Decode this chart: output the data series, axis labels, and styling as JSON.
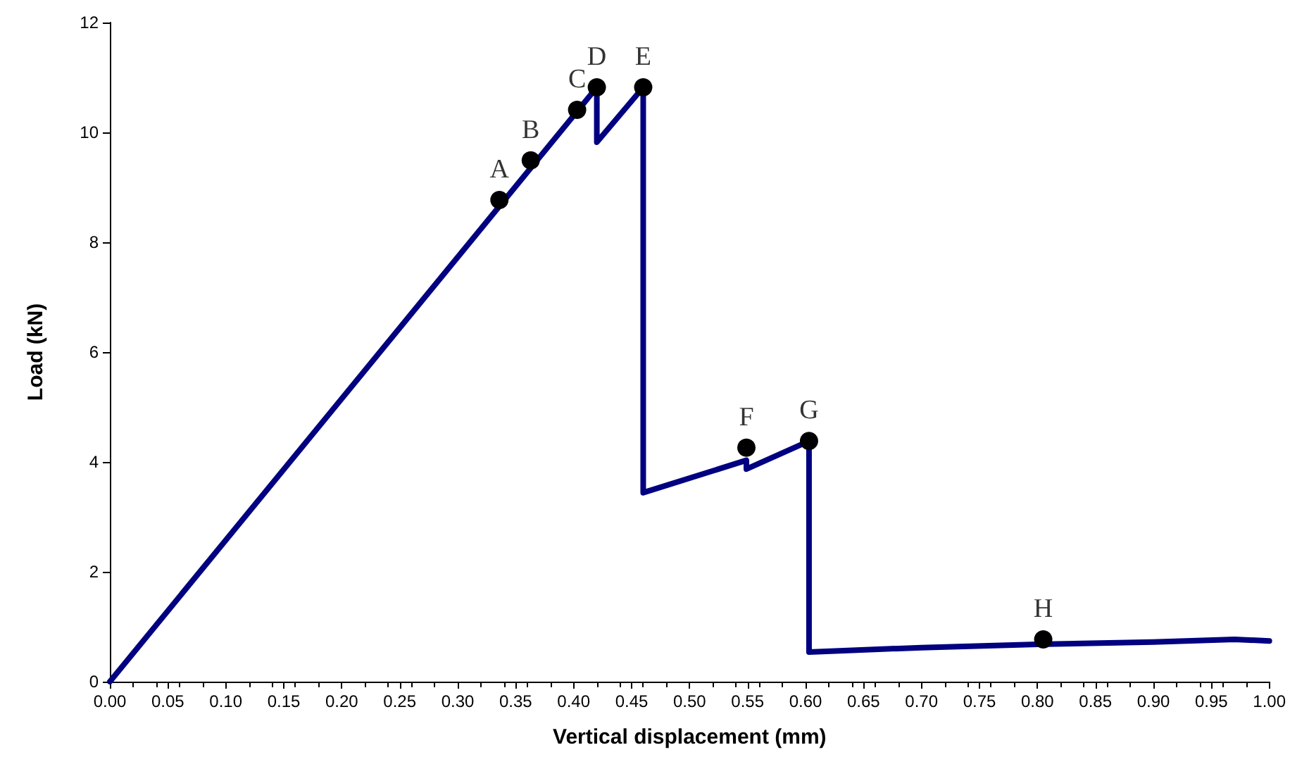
{
  "chart_data": {
    "type": "line",
    "xlabel": "Vertical displacement (mm)",
    "ylabel": "Load (kN)",
    "xlim": [
      0,
      1
    ],
    "xticks": [
      {
        "value": 0,
        "label": "0.00"
      },
      {
        "value": 0.05,
        "label": "0.05"
      },
      {
        "value": 0.1,
        "label": "0.10"
      },
      {
        "value": 0.15,
        "label": "0.15"
      },
      {
        "value": 0.2,
        "label": "0.20"
      },
      {
        "value": 0.25,
        "label": "0.25"
      },
      {
        "value": 0.3,
        "label": "0.30"
      },
      {
        "value": 0.35,
        "label": "0.35"
      },
      {
        "value": 0.4,
        "label": "0.40"
      },
      {
        "value": 0.45,
        "label": "0.45"
      },
      {
        "value": 0.5,
        "label": "0.50"
      },
      {
        "value": 0.55,
        "label": "0.55"
      },
      {
        "value": 0.6,
        "label": "0.60"
      },
      {
        "value": 0.65,
        "label": "0.65"
      },
      {
        "value": 0.7,
        "label": "0.70"
      },
      {
        "value": 0.75,
        "label": "0.75"
      },
      {
        "value": 0.8,
        "label": "0.80"
      },
      {
        "value": 0.85,
        "label": "0.85"
      },
      {
        "value": 0.9,
        "label": "0.90"
      },
      {
        "value": 0.95,
        "label": "0.95"
      },
      {
        "value": 1,
        "label": "1.00"
      }
    ],
    "ylim": [
      0,
      12
    ],
    "yticks": [
      0,
      2,
      4,
      6,
      8,
      10,
      12
    ],
    "grid": false,
    "line_style": "solid",
    "series": [
      {
        "color": "#000080",
        "marker": "none",
        "x": [
          0,
          0.42,
          0.42,
          0.46,
          0.46,
          0.549,
          0.549,
          0.603,
          0.603,
          0.7,
          0.8,
          0.9,
          0.97,
          1.0
        ],
        "values": [
          0,
          10.82,
          9.82,
          10.82,
          3.44,
          4.03,
          3.87,
          4.38,
          0.54,
          0.62,
          0.68,
          0.72,
          0.77,
          0.74
        ]
      },
      {
        "type": "scatter",
        "color": "#000000",
        "marker": "circle",
        "x": [
          0.336,
          0.363,
          0.403,
          0.42,
          0.46,
          0.549,
          0.603,
          0.805
        ],
        "values": [
          8.77,
          9.49,
          10.41,
          10.82,
          10.82,
          4.26,
          4.38,
          0.77
        ]
      }
    ],
    "annotations": [
      {
        "text": "A",
        "x": 0.336,
        "y": 8.77
      },
      {
        "text": "B",
        "x": 0.363,
        "y": 9.49
      },
      {
        "text": "C",
        "x": 0.403,
        "y": 10.41
      },
      {
        "text": "D",
        "x": 0.42,
        "y": 10.82
      },
      {
        "text": "E",
        "x": 0.46,
        "y": 10.82
      },
      {
        "text": "F",
        "x": 0.549,
        "y": 4.26
      },
      {
        "text": "G",
        "x": 0.603,
        "y": 4.38
      },
      {
        "text": "H",
        "x": 0.805,
        "y": 0.77
      }
    ]
  }
}
